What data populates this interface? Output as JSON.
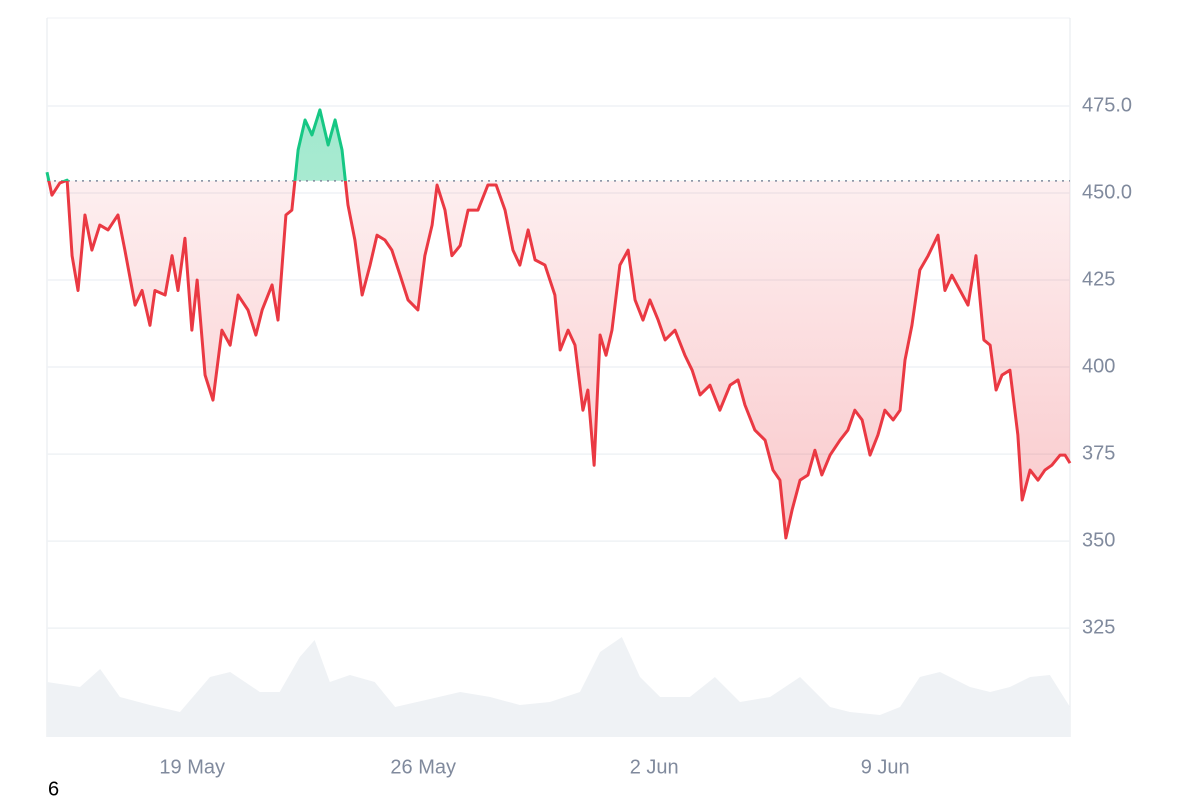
{
  "chart_data": {
    "type": "line",
    "x": [
      14.6,
      14.75,
      14.99,
      15.21,
      15.36,
      15.54,
      15.75,
      15.96,
      16.2,
      16.45,
      16.75,
      16.96,
      17.27,
      17.48,
      17.72,
      17.87,
      18.18,
      18.39,
      18.57,
      18.78,
      18.99,
      19.15,
      19.39,
      19.63,
      19.9,
      20.15,
      20.39,
      20.69,
      20.93,
      21.12,
      21.42,
      21.6,
      21.84,
      22.02,
      22.21,
      22.42,
      22.63,
      22.87,
      23.12,
      23.33,
      23.54,
      23.72,
      23.93,
      24.15,
      24.39,
      24.6,
      24.84,
      25.05,
      25.3,
      25.54,
      25.84,
      26.05,
      26.27,
      26.42,
      26.66,
      26.87,
      27.12,
      27.36,
      27.66,
      27.96,
      28.21,
      28.48,
      28.72,
      28.93,
      29.18,
      29.39,
      29.69,
      29.99,
      30.15,
      30.39,
      30.6,
      30.84,
      30.99,
      31.18,
      31.36,
      31.54,
      31.72,
      31.96,
      32.21,
      32.42,
      32.66,
      32.87,
      33.12,
      33.33,
      33.63,
      33.93,
      34.15,
      34.39,
      34.69,
      34.99,
      35.3,
      35.54,
      35.75,
      36.05,
      36.36,
      36.6,
      36.81,
      36.99,
      37.18,
      37.42,
      37.66,
      37.87,
      38.08,
      38.33,
      38.63,
      38.87,
      39.08,
      39.3,
      39.54,
      39.78,
      39.99,
      40.24,
      40.45,
      40.6,
      40.81,
      41.05,
      41.3,
      41.6,
      41.81,
      42.02,
      42.27,
      42.51,
      42.75,
      42.99,
      43.18,
      43.36,
      43.54,
      43.78,
      44.02,
      44.15,
      44.39,
      44.63,
      44.84,
      45.05,
      45.3,
      45.45,
      45.6
    ],
    "values": [
      456,
      449.4,
      452.9,
      453.7,
      432,
      422,
      443.7,
      433.6,
      440.8,
      439.4,
      443.7,
      433.6,
      417.8,
      422,
      412,
      422,
      420.7,
      432,
      422,
      437,
      410.6,
      425,
      397.7,
      390.5,
      410.6,
      406.3,
      420.7,
      416.4,
      409.2,
      416.4,
      423.6,
      413.5,
      443.7,
      445.1,
      462.4,
      471,
      466.7,
      473.9,
      463.8,
      471,
      462.4,
      446.6,
      436.5,
      420.7,
      429.3,
      437.9,
      436.5,
      433.6,
      426.4,
      419.3,
      416.4,
      432,
      440.8,
      452.3,
      445.1,
      432,
      434.9,
      445.1,
      445.1,
      452.3,
      452.3,
      445.1,
      433.6,
      429.3,
      439.4,
      430.8,
      429.3,
      420.7,
      404.9,
      410.6,
      406.3,
      387.6,
      393.4,
      371.8,
      409.2,
      403.4,
      410.6,
      429.3,
      433.6,
      419.3,
      413.5,
      419.3,
      413.5,
      407.8,
      410.6,
      403.4,
      399.1,
      392,
      394.8,
      387.6,
      394.8,
      396.3,
      389.1,
      381.9,
      379,
      370.4,
      367.5,
      350.9,
      359,
      367.5,
      369,
      376.1,
      369,
      374.7,
      379,
      381.9,
      387.6,
      384.8,
      374.7,
      380.5,
      387.6,
      384.8,
      387.6,
      402,
      412,
      427.9,
      432,
      437.9,
      422,
      426.4,
      422,
      417.8,
      432,
      407.8,
      406.3,
      393.4,
      397.7,
      399.1,
      380.5,
      361.8,
      370.4,
      367.5,
      370.4,
      371.8,
      374.7,
      374.7,
      372.4
    ],
    "color": "#ea3943",
    "up_color": "#16c784",
    "baseline": 453.5,
    "xlim": [
      14.6,
      45.6
    ],
    "xticks": [
      {
        "value": 19,
        "label": "19 May"
      },
      {
        "value": 26,
        "label": "26 May"
      },
      {
        "value": 33,
        "label": "2 Jun"
      },
      {
        "value": 40,
        "label": "9 Jun"
      }
    ],
    "ylim": [
      293.7,
      500.3
    ],
    "yticks": [
      325,
      350,
      375,
      400,
      425,
      {
        "value": 450,
        "label": "450.0"
      },
      {
        "value": 475,
        "label": "475.0"
      }
    ],
    "grid": true,
    "volume": {
      "color": "#eff2f5",
      "x": [
        14.6,
        15.6,
        16.21,
        16.81,
        17.72,
        18.63,
        19.54,
        20.15,
        21.05,
        21.65,
        22.26,
        22.71,
        23.17,
        23.78,
        24.53,
        25.15,
        26.21,
        27.12,
        28.03,
        28.93,
        29.84,
        30.75,
        31.36,
        32.02,
        32.57,
        33.18,
        34.08,
        34.84,
        35.6,
        36.51,
        37.42,
        38.33,
        38.93,
        39.84,
        40.45,
        41.05,
        41.66,
        42.57,
        43.18,
        43.78,
        44.39,
        44.99,
        45.6
      ],
      "values": [
        55,
        50,
        68,
        40,
        32,
        25,
        60,
        65,
        45,
        45,
        80,
        97,
        55,
        62,
        55,
        30,
        38,
        45,
        40,
        32,
        35,
        45,
        85,
        100,
        60,
        40,
        40,
        60,
        35,
        40,
        60,
        30,
        25,
        22,
        30,
        60,
        65,
        50,
        45,
        50,
        60,
        62,
        30
      ],
      "vlim": [
        0,
        120
      ]
    },
    "footnote": "6"
  }
}
